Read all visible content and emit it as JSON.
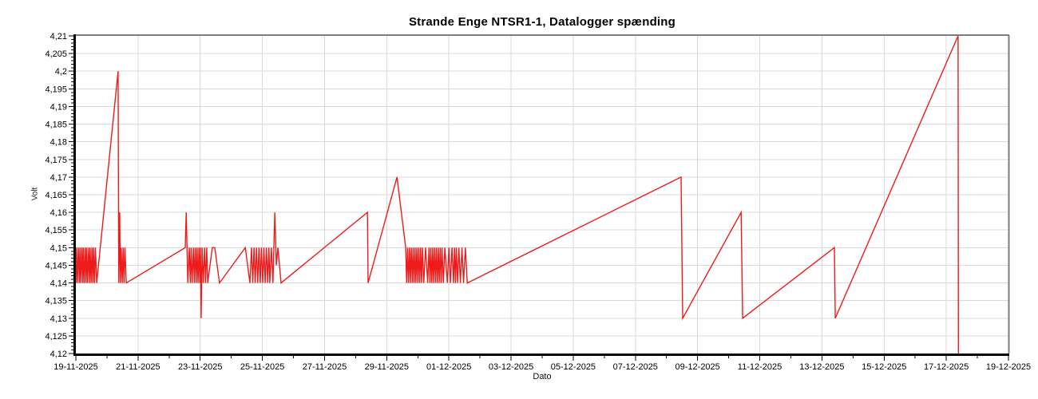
{
  "chart_data": {
    "type": "line",
    "title": "Strande Enge NTSR1-1, Datalogger spænding",
    "xlabel": "Dato",
    "ylabel": "Volt",
    "x_start_date": "19-11-2025",
    "x_end_date": "19-12-2025",
    "x_days_span": 30,
    "x_tick_interval_days": 2,
    "x_tick_labels": [
      "19-11-2025",
      "21-11-2025",
      "23-11-2025",
      "25-11-2025",
      "27-11-2025",
      "29-11-2025",
      "01-12-2025",
      "03-12-2025",
      "05-12-2025",
      "07-12-2025",
      "09-12-2025",
      "11-12-2025",
      "13-12-2025",
      "15-12-2025",
      "17-12-2025",
      "19-12-2025"
    ],
    "ylim": [
      4.12,
      4.21
    ],
    "y_tick_step": 0.005,
    "y_minor_step": 0.001,
    "y_tick_labels": [
      "4,21",
      "4,205",
      "4,2",
      "4,195",
      "4,19",
      "4,185",
      "4,18",
      "4,175",
      "4,17",
      "4,165",
      "4,16",
      "4,155",
      "4,15",
      "4,145",
      "4,14",
      "4,135",
      "4,13",
      "4,125",
      "4,12"
    ],
    "grid": true,
    "legend": "none",
    "line_color": "#ee1b1b",
    "grid_color": "#d9d9d9",
    "border_gray": "#7d7d7d",
    "axis_black": "#000000",
    "series": [
      {
        "name": "Datalogger spænding",
        "x_unit": "days since 19-11-2025",
        "points": [
          [
            0.0,
            4.14
          ],
          [
            0.02,
            4.15
          ],
          [
            0.05,
            4.14
          ],
          [
            0.08,
            4.15
          ],
          [
            0.11,
            4.14
          ],
          [
            0.13,
            4.15
          ],
          [
            0.16,
            4.14
          ],
          [
            0.19,
            4.15
          ],
          [
            0.22,
            4.14
          ],
          [
            0.24,
            4.15
          ],
          [
            0.27,
            4.14
          ],
          [
            0.3,
            4.15
          ],
          [
            0.33,
            4.14
          ],
          [
            0.35,
            4.15
          ],
          [
            0.38,
            4.14
          ],
          [
            0.41,
            4.15
          ],
          [
            0.44,
            4.14
          ],
          [
            0.46,
            4.15
          ],
          [
            0.49,
            4.14
          ],
          [
            0.52,
            4.15
          ],
          [
            0.55,
            4.14
          ],
          [
            0.57,
            4.15
          ],
          [
            0.6,
            4.14
          ],
          [
            0.63,
            4.15
          ],
          [
            0.67,
            4.14
          ],
          [
            1.36,
            4.2
          ],
          [
            1.38,
            4.14
          ],
          [
            1.41,
            4.16
          ],
          [
            1.43,
            4.14
          ],
          [
            1.46,
            4.15
          ],
          [
            1.49,
            4.14
          ],
          [
            1.52,
            4.15
          ],
          [
            1.55,
            4.14
          ],
          [
            1.58,
            4.15
          ],
          [
            1.62,
            4.14
          ],
          [
            3.52,
            4.15
          ],
          [
            3.55,
            4.16
          ],
          [
            3.6,
            4.14
          ],
          [
            3.65,
            4.15
          ],
          [
            3.68,
            4.14
          ],
          [
            3.71,
            4.15
          ],
          [
            3.74,
            4.14
          ],
          [
            3.78,
            4.15
          ],
          [
            3.81,
            4.14
          ],
          [
            3.84,
            4.15
          ],
          [
            3.87,
            4.14
          ],
          [
            3.9,
            4.15
          ],
          [
            3.93,
            4.14
          ],
          [
            3.96,
            4.15
          ],
          [
            3.99,
            4.14
          ],
          [
            4.01,
            4.15
          ],
          [
            4.03,
            4.13
          ],
          [
            4.06,
            4.15
          ],
          [
            4.1,
            4.14
          ],
          [
            4.14,
            4.15
          ],
          [
            4.17,
            4.14
          ],
          [
            4.21,
            4.15
          ],
          [
            4.24,
            4.14
          ],
          [
            4.39,
            4.15
          ],
          [
            4.47,
            4.15
          ],
          [
            4.62,
            4.14
          ],
          [
            5.45,
            4.15
          ],
          [
            5.6,
            4.14
          ],
          [
            5.65,
            4.15
          ],
          [
            5.69,
            4.14
          ],
          [
            5.73,
            4.15
          ],
          [
            5.77,
            4.14
          ],
          [
            5.81,
            4.15
          ],
          [
            5.85,
            4.14
          ],
          [
            5.89,
            4.15
          ],
          [
            5.93,
            4.14
          ],
          [
            5.97,
            4.15
          ],
          [
            6.01,
            4.14
          ],
          [
            6.05,
            4.15
          ],
          [
            6.09,
            4.14
          ],
          [
            6.13,
            4.15
          ],
          [
            6.17,
            4.14
          ],
          [
            6.21,
            4.15
          ],
          [
            6.24,
            4.14
          ],
          [
            6.29,
            4.15
          ],
          [
            6.34,
            4.14
          ],
          [
            6.4,
            4.16
          ],
          [
            6.45,
            4.145
          ],
          [
            6.5,
            4.15
          ],
          [
            6.6,
            4.14
          ],
          [
            9.38,
            4.16
          ],
          [
            9.4,
            4.14
          ],
          [
            10.33,
            4.17
          ],
          [
            10.61,
            4.15
          ],
          [
            10.64,
            4.14
          ],
          [
            10.67,
            4.15
          ],
          [
            10.7,
            4.14
          ],
          [
            10.73,
            4.15
          ],
          [
            10.76,
            4.14
          ],
          [
            10.79,
            4.15
          ],
          [
            10.82,
            4.14
          ],
          [
            10.85,
            4.15
          ],
          [
            10.88,
            4.14
          ],
          [
            10.91,
            4.15
          ],
          [
            10.94,
            4.14
          ],
          [
            10.97,
            4.15
          ],
          [
            11.0,
            4.14
          ],
          [
            11.03,
            4.15
          ],
          [
            11.06,
            4.14
          ],
          [
            11.09,
            4.15
          ],
          [
            11.12,
            4.14
          ],
          [
            11.15,
            4.15
          ],
          [
            11.19,
            4.14
          ],
          [
            11.25,
            4.15
          ],
          [
            11.32,
            4.14
          ],
          [
            11.36,
            4.15
          ],
          [
            11.39,
            4.14
          ],
          [
            11.42,
            4.15
          ],
          [
            11.45,
            4.14
          ],
          [
            11.48,
            4.15
          ],
          [
            11.51,
            4.14
          ],
          [
            11.54,
            4.15
          ],
          [
            11.57,
            4.14
          ],
          [
            11.6,
            4.15
          ],
          [
            11.63,
            4.14
          ],
          [
            11.66,
            4.15
          ],
          [
            11.69,
            4.14
          ],
          [
            11.72,
            4.15
          ],
          [
            11.75,
            4.14
          ],
          [
            11.78,
            4.15
          ],
          [
            11.82,
            4.14
          ],
          [
            11.87,
            4.15
          ],
          [
            11.95,
            4.14
          ],
          [
            12.0,
            4.15
          ],
          [
            12.05,
            4.14
          ],
          [
            12.1,
            4.15
          ],
          [
            12.15,
            4.14
          ],
          [
            12.18,
            4.15
          ],
          [
            12.21,
            4.14
          ],
          [
            12.24,
            4.15
          ],
          [
            12.28,
            4.14
          ],
          [
            12.32,
            4.15
          ],
          [
            12.37,
            4.14
          ],
          [
            12.42,
            4.15
          ],
          [
            12.47,
            4.14
          ],
          [
            12.53,
            4.15
          ],
          [
            12.59,
            4.14
          ],
          [
            19.47,
            4.17
          ],
          [
            19.52,
            4.13
          ],
          [
            21.4,
            4.16
          ],
          [
            21.45,
            4.13
          ],
          [
            24.4,
            4.15
          ],
          [
            24.43,
            4.13
          ],
          [
            28.38,
            4.21
          ],
          [
            28.39,
            4.12
          ]
        ]
      }
    ]
  }
}
